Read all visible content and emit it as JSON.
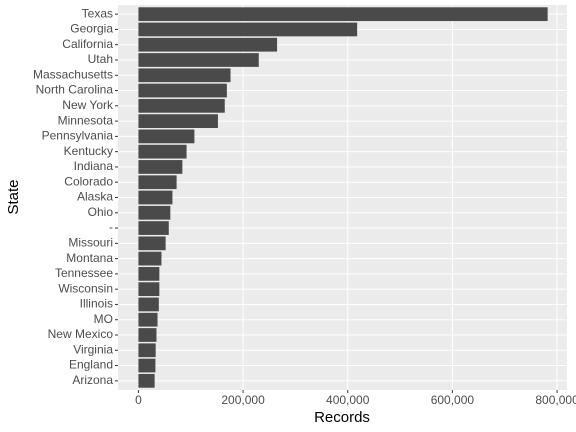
{
  "chart_data": {
    "type": "barh",
    "x_label": "Records",
    "y_label": "State",
    "categories": [
      "Texas",
      "Georgia",
      "California",
      "Utah",
      "Massachusetts",
      "North Carolina",
      "New York",
      "Minnesota",
      "Pennsylvania",
      "Kentucky",
      "Indiana",
      "Colorado",
      "Alaska",
      "Ohio",
      "-",
      "Missouri",
      "Montana",
      "Tennessee",
      "Wisconsin",
      "Illinois",
      "MO",
      "New Mexico",
      "Virginia",
      "England",
      "Arizona"
    ],
    "values": [
      782000,
      418000,
      265000,
      230000,
      176000,
      169000,
      165000,
      152000,
      107000,
      92000,
      84000,
      73000,
      65000,
      61000,
      58000,
      52000,
      44000,
      40000,
      40000,
      39000,
      36500,
      34500,
      33000,
      32500,
      31000
    ],
    "color": "#4a4a4a",
    "xlim": [
      -39000,
      819000
    ],
    "xticks": [
      0,
      {
        "value": 200000,
        "label": "200,000"
      },
      {
        "value": 400000,
        "label": "400,000"
      },
      {
        "value": 600000,
        "label": "600,000"
      },
      {
        "value": 800000,
        "label": "800,000"
      }
    ],
    "grid": true
  }
}
